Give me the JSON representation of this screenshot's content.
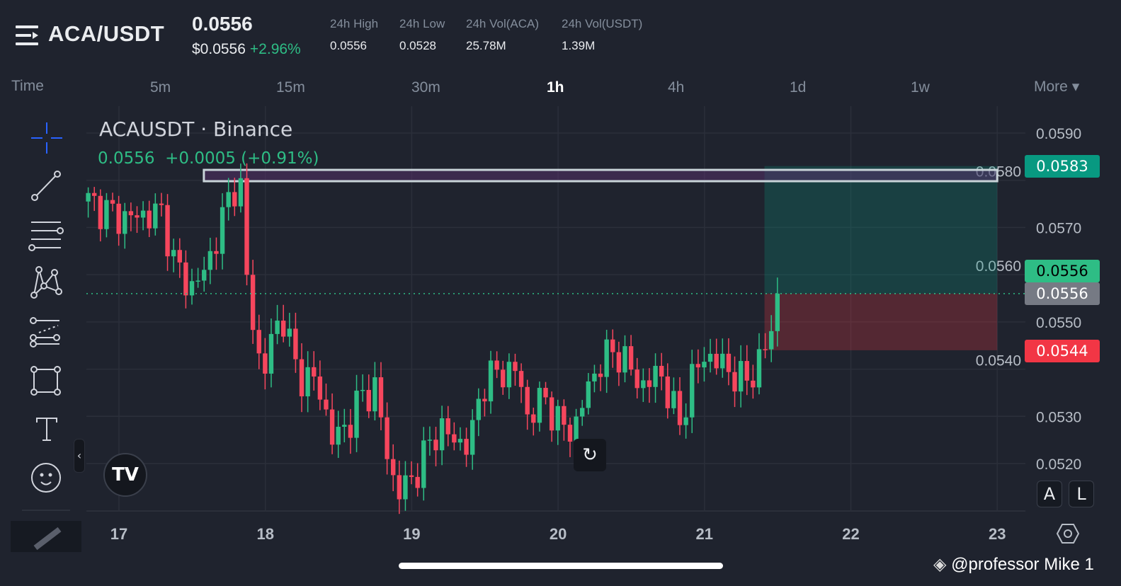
{
  "header": {
    "menu_icon": "menu-icon",
    "pair": "ACA/USDT",
    "last_price": "0.0556",
    "usd_price": "$0.0556",
    "change": "+2.96%",
    "stats": [
      {
        "label": "24h High",
        "value": "0.0556"
      },
      {
        "label": "24h Low",
        "value": "0.0528"
      },
      {
        "label": "24h Vol(ACA)",
        "value": "25.78M"
      },
      {
        "label": "24h Vol(USDT)",
        "value": "1.39M"
      }
    ]
  },
  "timeframes": {
    "label": "Time",
    "items": [
      "5m",
      "15m",
      "30m",
      "1h",
      "4h",
      "1d",
      "1w"
    ],
    "active": "1h",
    "more": "More"
  },
  "toolbar": {
    "tools": [
      "crosshair-icon",
      "trend-line-icon",
      "horizontal-lines-icon",
      "pattern-icon",
      "fib-icon",
      "rectangle-icon",
      "text-icon",
      "emoji-icon"
    ],
    "ruler": "ruler-icon"
  },
  "legend": {
    "title": "ACAUSDT · Binance",
    "price": "0.0556",
    "change": "+0.0005 (+0.91%)"
  },
  "price_labels": {
    "target": "0.0583",
    "current_green": "0.0556",
    "current_grey": "0.0556",
    "stop": "0.0544"
  },
  "axis_buttons": {
    "auto": "A",
    "log": "L"
  },
  "watermark": "@professor Mike 1",
  "colors": {
    "up": "#2ebd85",
    "down": "#f6465d",
    "target": "#089981",
    "stop": "#f23645",
    "bg": "#1f232e"
  },
  "chart_data": {
    "type": "candlestick",
    "interval": "1h",
    "symbol": "ACAUSDT",
    "x_ticks": [
      "17",
      "18",
      "19",
      "20",
      "21",
      "22",
      "23"
    ],
    "y_ticks": [
      "0.0590",
      "0.0580",
      "0.0570",
      "0.0560",
      "0.0550",
      "0.0540",
      "0.0530",
      "0.0520"
    ],
    "ylim": [
      0.05115,
      0.0599
    ],
    "xlim": [
      16.73,
      23.2
    ],
    "close_path": [
      [
        16.79,
        0.05755
      ],
      [
        17.01,
        0.0572
      ],
      [
        17.3,
        0.0573
      ],
      [
        17.37,
        0.0563
      ],
      [
        17.49,
        0.0557
      ],
      [
        17.59,
        0.0561
      ],
      [
        17.69,
        0.057
      ],
      [
        17.78,
        0.0579
      ],
      [
        17.83,
        0.0579
      ],
      [
        17.86,
        0.0561
      ],
      [
        17.93,
        0.0548
      ],
      [
        17.98,
        0.0537
      ],
      [
        18.05,
        0.0548
      ],
      [
        18.12,
        0.0551
      ],
      [
        18.22,
        0.0539
      ],
      [
        18.36,
        0.0537
      ],
      [
        18.46,
        0.0525
      ],
      [
        18.56,
        0.0528
      ],
      [
        18.65,
        0.0534
      ],
      [
        18.75,
        0.0536
      ],
      [
        18.85,
        0.0519
      ],
      [
        18.9,
        0.0514
      ],
      [
        18.99,
        0.0516
      ],
      [
        19.09,
        0.0522
      ],
      [
        19.19,
        0.0528
      ],
      [
        19.28,
        0.0525
      ],
      [
        19.4,
        0.0524
      ],
      [
        19.48,
        0.0537
      ],
      [
        19.57,
        0.0539
      ],
      [
        19.72,
        0.054
      ],
      [
        19.79,
        0.053
      ],
      [
        19.91,
        0.0534
      ],
      [
        20.01,
        0.0528
      ],
      [
        20.11,
        0.0527
      ],
      [
        20.2,
        0.0536
      ],
      [
        20.3,
        0.0542
      ],
      [
        20.4,
        0.0544
      ],
      [
        20.49,
        0.054
      ],
      [
        20.59,
        0.0536
      ],
      [
        20.69,
        0.054
      ],
      [
        20.83,
        0.0528
      ],
      [
        20.9,
        0.0537
      ],
      [
        21.0,
        0.0543
      ],
      [
        21.12,
        0.0541
      ],
      [
        21.27,
        0.0537
      ],
      [
        21.39,
        0.0542
      ],
      [
        21.46,
        0.0549
      ],
      [
        21.5,
        0.0556
      ]
    ],
    "resistance_zone": {
      "from": 17.58,
      "to": 23.0,
      "low": 0.05798,
      "high": 0.05822
    },
    "long_position": {
      "from": 21.41,
      "to": 23.0,
      "entry": 0.0556,
      "target": 0.0583,
      "stop": 0.0544
    }
  }
}
